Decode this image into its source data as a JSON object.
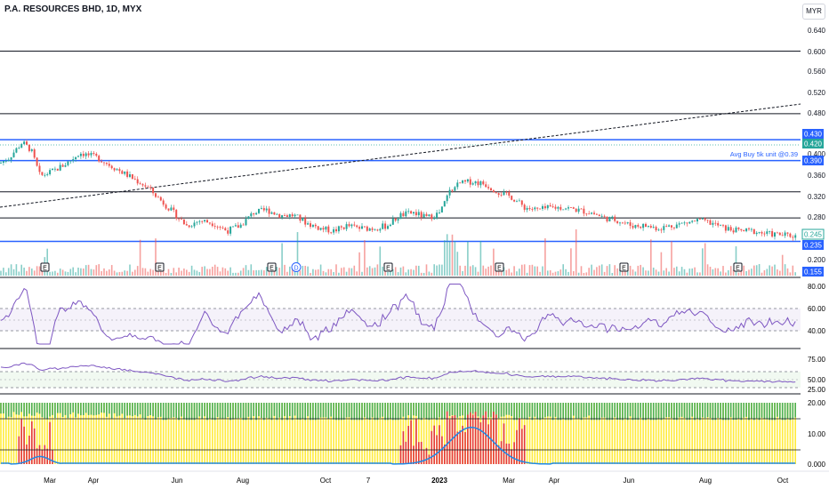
{
  "header": {
    "symbol_title": "P.A. RESOURCES BHD, 1D, MYX",
    "currency_button": "MYR"
  },
  "price_axis": {
    "ticks": [
      "0.640",
      "0.600",
      "0.560",
      "0.520",
      "0.480",
      "0.400",
      "0.360",
      "0.320",
      "0.280",
      "0.200"
    ],
    "badges": {
      "line_430": "0.430",
      "line_420": "0.420",
      "line_390": "0.390",
      "last_price": "0.245",
      "line_235": "0.235",
      "line_155": "0.155"
    }
  },
  "annotation": {
    "avg_buy": "Avg Buy 5k unit @0.39"
  },
  "event_markers": [
    "E",
    "E",
    "E",
    "D",
    "E",
    "E",
    "E",
    "E"
  ],
  "rsi_axis": {
    "ticks": [
      "80.00",
      "60.00",
      "40.00"
    ]
  },
  "osc2_axis": {
    "ticks": [
      "75.00",
      "50.00",
      "25.00"
    ]
  },
  "osc3_axis": {
    "ticks": [
      "20.00",
      "10.00",
      "0.000"
    ]
  },
  "time_axis": {
    "labels": [
      "Mar",
      "Apr",
      "Jun",
      "Aug",
      "Oct",
      "7",
      "2023",
      "Mar",
      "Apr",
      "Jun",
      "Aug",
      "Oct"
    ]
  },
  "colors": {
    "up": "#26a69a",
    "down": "#ef5350",
    "blue_line": "#2962ff",
    "rsi_line": "#7e57c2",
    "yellow_bars": "#ffeb3b",
    "green_bars": "#4caf50",
    "red_bars": "#e53935",
    "osc3_line": "#1e88e5"
  },
  "chart_data": {
    "type": "candlestick",
    "price_anchors": [
      [
        0,
        0.385
      ],
      [
        10,
        0.395
      ],
      [
        25,
        0.425
      ],
      [
        35,
        0.41
      ],
      [
        45,
        0.36
      ],
      [
        60,
        0.37
      ],
      [
        75,
        0.385
      ],
      [
        90,
        0.405
      ],
      [
        110,
        0.395
      ],
      [
        130,
        0.375
      ],
      [
        150,
        0.355
      ],
      [
        165,
        0.34
      ],
      [
        180,
        0.315
      ],
      [
        195,
        0.29
      ],
      [
        210,
        0.265
      ],
      [
        225,
        0.275
      ],
      [
        240,
        0.27
      ],
      [
        255,
        0.255
      ],
      [
        270,
        0.265
      ],
      [
        285,
        0.29
      ],
      [
        300,
        0.295
      ],
      [
        315,
        0.285
      ],
      [
        330,
        0.285
      ],
      [
        345,
        0.27
      ],
      [
        360,
        0.26
      ],
      [
        375,
        0.255
      ],
      [
        390,
        0.265
      ],
      [
        405,
        0.26
      ],
      [
        420,
        0.26
      ],
      [
        435,
        0.265
      ],
      [
        450,
        0.285
      ],
      [
        465,
        0.29
      ],
      [
        480,
        0.28
      ],
      [
        495,
        0.29
      ],
      [
        505,
        0.33
      ],
      [
        515,
        0.345
      ],
      [
        530,
        0.35
      ],
      [
        545,
        0.345
      ],
      [
        560,
        0.33
      ],
      [
        575,
        0.32
      ],
      [
        590,
        0.3
      ],
      [
        605,
        0.295
      ],
      [
        620,
        0.3
      ],
      [
        635,
        0.3
      ],
      [
        650,
        0.295
      ],
      [
        665,
        0.29
      ],
      [
        680,
        0.28
      ],
      [
        695,
        0.275
      ],
      [
        710,
        0.265
      ],
      [
        725,
        0.265
      ],
      [
        740,
        0.26
      ],
      [
        755,
        0.265
      ],
      [
        770,
        0.27
      ],
      [
        785,
        0.275
      ],
      [
        800,
        0.27
      ],
      [
        815,
        0.26
      ],
      [
        830,
        0.255
      ],
      [
        845,
        0.255
      ],
      [
        860,
        0.25
      ],
      [
        875,
        0.248
      ],
      [
        895,
        0.245
      ]
    ],
    "horizontal_levels": [
      0.6,
      0.48,
      0.43,
      0.39,
      0.33,
      0.28,
      0.235
    ],
    "rsi_levels": [
      70,
      50,
      30
    ],
    "osc3_levels": [
      5,
      15
    ]
  }
}
